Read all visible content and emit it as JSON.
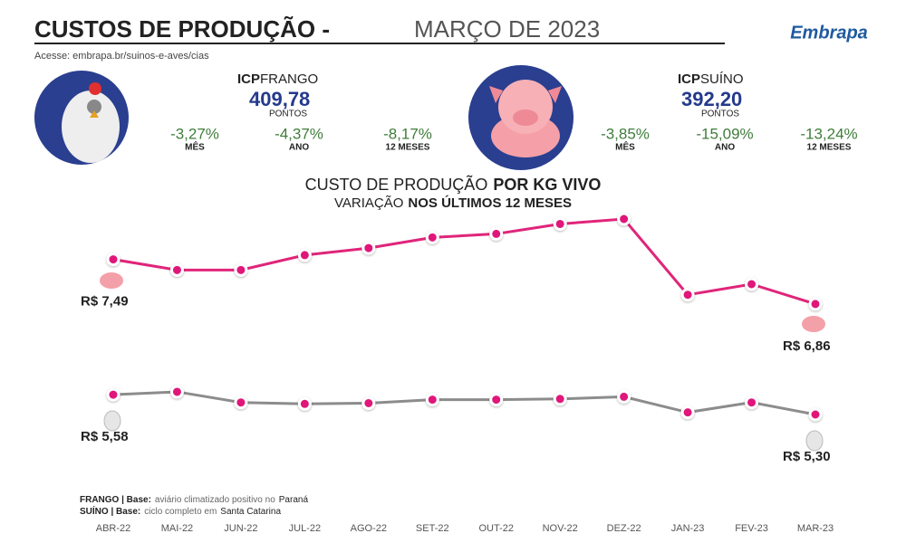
{
  "header": {
    "title": "CUSTOS DE PRODUÇÃO -",
    "subtitle": "MARÇO DE 2023",
    "link": "Acesse: embrapa.br/suinos-e-aves/cias",
    "logo": "Embrapa"
  },
  "icp": [
    {
      "prefix": "ICP",
      "name": "FRANGO",
      "value": "409,78",
      "unit": "PONTOS",
      "changes": [
        {
          "value": "-3,27%",
          "label": "MÊS"
        },
        {
          "value": "-4,37%",
          "label": "ANO"
        },
        {
          "value": "-8,17%",
          "label": "12 MESES"
        }
      ]
    },
    {
      "prefix": "ICP",
      "name": "SUÍNO",
      "value": "392,20",
      "unit": "PONTOS",
      "changes": [
        {
          "value": "-3,85%",
          "label": "MÊS"
        },
        {
          "value": "-15,09%",
          "label": "ANO"
        },
        {
          "value": "-13,24%",
          "label": "12 MESES"
        }
      ]
    }
  ],
  "chart_data": {
    "type": "line",
    "title": "CUSTO DE PRODUÇÃO",
    "title_bold": "POR KG VIVO",
    "subtitle": "VARIAÇÃO",
    "subtitle_bold": "NOS ÚLTIMOS 12 MESES",
    "categories": [
      "ABR-22",
      "MAI-22",
      "JUN-22",
      "JUL-22",
      "AGO-22",
      "SET-22",
      "OUT-22",
      "NOV-22",
      "DEZ-22",
      "JAN-23",
      "FEV-23",
      "MAR-23"
    ],
    "series": [
      {
        "color": "#e0257a",
        "values": [
          7.49,
          7.34,
          7.34,
          7.55,
          7.65,
          7.8,
          7.85,
          7.99,
          8.06,
          6.99,
          7.14,
          6.86
        ],
        "value_labels": [
          "R$ 7,49",
          null,
          null,
          null,
          null,
          null,
          null,
          null,
          null,
          null,
          null,
          "R$ 6,86"
        ]
      },
      {
        "color": "#8c8c8c",
        "values": [
          5.58,
          5.62,
          5.47,
          5.45,
          5.46,
          5.51,
          5.51,
          5.52,
          5.55,
          5.33,
          5.47,
          5.3
        ],
        "value_labels": [
          "R$ 5,58",
          null,
          null,
          null,
          null,
          null,
          null,
          null,
          null,
          null,
          null,
          "R$ 5,30"
        ]
      }
    ],
    "marker_color": "#e0157a"
  },
  "notes": [
    {
      "label": "FRANGO | Base:",
      "text": "aviário climatizado positivo no",
      "place": "Paraná"
    },
    {
      "label": "SUÍNO | Base:",
      "text": "ciclo completo em",
      "place": "Santa Catarina"
    }
  ]
}
